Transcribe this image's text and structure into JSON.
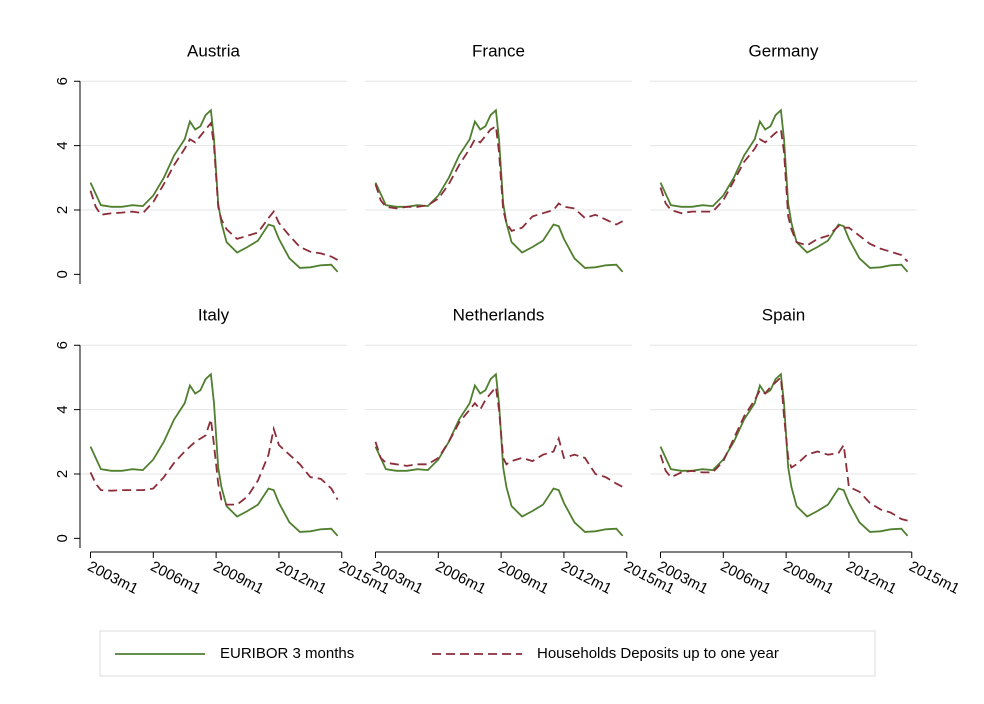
{
  "chart_data": [
    {
      "type": "line",
      "title": "Austria",
      "x": [
        2003,
        2003.25,
        2003.5,
        2004,
        2004.5,
        2005,
        2005.5,
        2006,
        2006.5,
        2007,
        2007.5,
        2007.75,
        2008,
        2008.25,
        2008.5,
        2008.75,
        2008.9,
        2009.1,
        2009.25,
        2009.5,
        2010,
        2010.5,
        2011,
        2011.5,
        2011.75,
        2012,
        2012.5,
        2013,
        2013.5,
        2014,
        2014.5,
        2014.8
      ],
      "series": [
        {
          "name": "EURIBOR 3 months",
          "color": "#4f7f2f",
          "values": [
            2.85,
            2.5,
            2.15,
            2.1,
            2.1,
            2.15,
            2.12,
            2.45,
            3.0,
            3.7,
            4.2,
            4.75,
            4.5,
            4.6,
            4.95,
            5.1,
            4.2,
            2.2,
            1.6,
            1.0,
            0.68,
            0.85,
            1.05,
            1.55,
            1.5,
            1.1,
            0.5,
            0.2,
            0.22,
            0.28,
            0.3,
            0.08
          ]
        },
        {
          "name": "Households Deposits up to one year",
          "color": "#8c2d3a",
          "values": [
            2.6,
            2.1,
            1.85,
            1.9,
            1.92,
            1.95,
            1.9,
            2.25,
            2.8,
            3.4,
            3.9,
            4.2,
            4.1,
            4.3,
            4.5,
            4.7,
            4.0,
            2.1,
            1.7,
            1.4,
            1.1,
            1.2,
            1.3,
            1.75,
            1.95,
            1.6,
            1.2,
            0.85,
            0.7,
            0.65,
            0.55,
            0.45
          ]
        }
      ],
      "xlim": [
        2002.5,
        2015.25
      ],
      "xticks": [
        {
          "value": 2003,
          "label": "2003m1"
        },
        {
          "value": 2006,
          "label": "2006m1"
        },
        {
          "value": 2009,
          "label": "2009m1"
        },
        {
          "value": 2012,
          "label": "2012m1"
        },
        {
          "value": 2015,
          "label": "2015m1"
        }
      ],
      "ylim": [
        -0.3,
        6.35
      ],
      "yticks": [
        0,
        2,
        4,
        6
      ],
      "grid": true
    },
    {
      "type": "line",
      "title": "France",
      "x": [
        2003,
        2003.25,
        2003.5,
        2004,
        2004.5,
        2005,
        2005.5,
        2006,
        2006.5,
        2007,
        2007.5,
        2007.75,
        2008,
        2008.25,
        2008.5,
        2008.75,
        2008.9,
        2009.1,
        2009.25,
        2009.5,
        2010,
        2010.5,
        2011,
        2011.5,
        2011.75,
        2012,
        2012.5,
        2013,
        2013.5,
        2014,
        2014.5,
        2014.8
      ],
      "series": [
        {
          "name": "EURIBOR 3 months",
          "color": "#4f7f2f",
          "values": [
            2.85,
            2.5,
            2.15,
            2.1,
            2.1,
            2.15,
            2.12,
            2.45,
            3.0,
            3.7,
            4.2,
            4.75,
            4.5,
            4.6,
            4.95,
            5.1,
            4.2,
            2.2,
            1.6,
            1.0,
            0.68,
            0.85,
            1.05,
            1.55,
            1.5,
            1.1,
            0.5,
            0.2,
            0.22,
            0.28,
            0.3,
            0.08
          ]
        },
        {
          "name": "Households Deposits up to one year",
          "color": "#8c2d3a",
          "values": [
            2.8,
            2.3,
            2.1,
            2.05,
            2.1,
            2.1,
            2.15,
            2.35,
            2.8,
            3.4,
            3.9,
            4.2,
            4.1,
            4.3,
            4.5,
            4.6,
            3.8,
            2.0,
            1.6,
            1.35,
            1.45,
            1.8,
            1.9,
            2.0,
            2.2,
            2.1,
            2.05,
            1.75,
            1.85,
            1.7,
            1.55,
            1.65
          ]
        }
      ],
      "xlim": [
        2002.5,
        2015.25
      ],
      "xticks": [
        {
          "value": 2003,
          "label": "2003m1"
        },
        {
          "value": 2006,
          "label": "2006m1"
        },
        {
          "value": 2009,
          "label": "2009m1"
        },
        {
          "value": 2012,
          "label": "2012m1"
        },
        {
          "value": 2015,
          "label": "2015m1"
        }
      ],
      "ylim": [
        -0.3,
        6.35
      ],
      "yticks": [
        0,
        2,
        4,
        6
      ],
      "grid": true
    },
    {
      "type": "line",
      "title": "Germany",
      "x": [
        2003,
        2003.25,
        2003.5,
        2004,
        2004.5,
        2005,
        2005.5,
        2006,
        2006.5,
        2007,
        2007.5,
        2007.75,
        2008,
        2008.25,
        2008.5,
        2008.75,
        2008.9,
        2009.1,
        2009.25,
        2009.5,
        2010,
        2010.5,
        2011,
        2011.5,
        2011.75,
        2012,
        2012.5,
        2013,
        2013.5,
        2014,
        2014.5,
        2014.8
      ],
      "series": [
        {
          "name": "EURIBOR 3 months",
          "color": "#4f7f2f",
          "values": [
            2.85,
            2.5,
            2.15,
            2.1,
            2.1,
            2.15,
            2.12,
            2.45,
            3.0,
            3.7,
            4.2,
            4.75,
            4.5,
            4.6,
            4.95,
            5.1,
            4.2,
            2.2,
            1.6,
            1.0,
            0.68,
            0.85,
            1.05,
            1.55,
            1.5,
            1.1,
            0.5,
            0.2,
            0.22,
            0.28,
            0.3,
            0.08
          ]
        },
        {
          "name": "Households Deposits up to one year",
          "color": "#8c2d3a",
          "values": [
            2.7,
            2.2,
            2.0,
            1.9,
            1.95,
            1.95,
            1.95,
            2.3,
            2.9,
            3.5,
            3.9,
            4.2,
            4.1,
            4.25,
            4.4,
            4.5,
            3.8,
            1.8,
            1.4,
            1.0,
            0.9,
            1.1,
            1.2,
            1.5,
            1.45,
            1.45,
            1.2,
            0.95,
            0.8,
            0.7,
            0.6,
            0.4
          ]
        }
      ],
      "xlim": [
        2002.5,
        2015.25
      ],
      "xticks": [
        {
          "value": 2003,
          "label": "2003m1"
        },
        {
          "value": 2006,
          "label": "2006m1"
        },
        {
          "value": 2009,
          "label": "2009m1"
        },
        {
          "value": 2012,
          "label": "2012m1"
        },
        {
          "value": 2015,
          "label": "2015m1"
        }
      ],
      "ylim": [
        -0.3,
        6.35
      ],
      "yticks": [
        0,
        2,
        4,
        6
      ],
      "grid": true
    },
    {
      "type": "line",
      "title": "Italy",
      "x": [
        2003,
        2003.25,
        2003.5,
        2004,
        2004.5,
        2005,
        2005.5,
        2006,
        2006.5,
        2007,
        2007.5,
        2007.75,
        2008,
        2008.25,
        2008.5,
        2008.75,
        2008.9,
        2009.1,
        2009.25,
        2009.5,
        2010,
        2010.5,
        2011,
        2011.5,
        2011.75,
        2012,
        2012.5,
        2013,
        2013.5,
        2014,
        2014.5,
        2014.8
      ],
      "series": [
        {
          "name": "EURIBOR 3 months",
          "color": "#4f7f2f",
          "values": [
            2.85,
            2.5,
            2.15,
            2.1,
            2.1,
            2.15,
            2.12,
            2.45,
            3.0,
            3.7,
            4.2,
            4.75,
            4.5,
            4.6,
            4.95,
            5.1,
            4.2,
            2.2,
            1.6,
            1.0,
            0.68,
            0.85,
            1.05,
            1.55,
            1.5,
            1.1,
            0.5,
            0.2,
            0.22,
            0.28,
            0.3,
            0.08
          ]
        },
        {
          "name": "Households Deposits up to one year",
          "color": "#8c2d3a",
          "values": [
            2.05,
            1.7,
            1.5,
            1.48,
            1.5,
            1.5,
            1.5,
            1.55,
            1.9,
            2.35,
            2.7,
            2.85,
            3.0,
            3.1,
            3.2,
            3.7,
            2.9,
            1.7,
            1.2,
            1.05,
            1.05,
            1.3,
            1.8,
            2.6,
            3.4,
            2.9,
            2.6,
            2.3,
            1.9,
            1.85,
            1.55,
            1.2
          ]
        }
      ],
      "xlim": [
        2002.5,
        2015.25
      ],
      "xticks": [
        {
          "value": 2003,
          "label": "2003m1"
        },
        {
          "value": 2006,
          "label": "2006m1"
        },
        {
          "value": 2009,
          "label": "2009m1"
        },
        {
          "value": 2012,
          "label": "2012m1"
        },
        {
          "value": 2015,
          "label": "2015m1"
        }
      ],
      "ylim": [
        -0.3,
        6.35
      ],
      "yticks": [
        0,
        2,
        4,
        6
      ],
      "grid": true
    },
    {
      "type": "line",
      "title": "Netherlands",
      "x": [
        2003,
        2003.25,
        2003.5,
        2004,
        2004.5,
        2005,
        2005.5,
        2006,
        2006.5,
        2007,
        2007.5,
        2007.75,
        2008,
        2008.25,
        2008.5,
        2008.75,
        2008.9,
        2009.1,
        2009.25,
        2009.5,
        2010,
        2010.5,
        2011,
        2011.5,
        2011.75,
        2012,
        2012.5,
        2013,
        2013.5,
        2014,
        2014.5,
        2014.8
      ],
      "series": [
        {
          "name": "EURIBOR 3 months",
          "color": "#4f7f2f",
          "values": [
            2.85,
            2.5,
            2.15,
            2.1,
            2.1,
            2.15,
            2.12,
            2.45,
            3.0,
            3.7,
            4.2,
            4.75,
            4.5,
            4.6,
            4.95,
            5.1,
            4.2,
            2.2,
            1.6,
            1.0,
            0.68,
            0.85,
            1.05,
            1.55,
            1.5,
            1.1,
            0.5,
            0.2,
            0.22,
            0.28,
            0.3,
            0.08
          ]
        },
        {
          "name": "Households Deposits up to one year",
          "color": "#8c2d3a",
          "values": [
            3.0,
            2.5,
            2.35,
            2.3,
            2.25,
            2.3,
            2.3,
            2.5,
            3.0,
            3.6,
            4.0,
            4.2,
            4.0,
            4.3,
            4.5,
            4.7,
            4.0,
            2.5,
            2.3,
            2.4,
            2.5,
            2.4,
            2.6,
            2.7,
            3.1,
            2.5,
            2.6,
            2.5,
            2.0,
            1.9,
            1.7,
            1.6
          ]
        }
      ],
      "xlim": [
        2002.5,
        2015.25
      ],
      "xticks": [
        {
          "value": 2003,
          "label": "2003m1"
        },
        {
          "value": 2006,
          "label": "2006m1"
        },
        {
          "value": 2009,
          "label": "2009m1"
        },
        {
          "value": 2012,
          "label": "2012m1"
        },
        {
          "value": 2015,
          "label": "2015m1"
        }
      ],
      "ylim": [
        -0.3,
        6.35
      ],
      "yticks": [
        0,
        2,
        4,
        6
      ],
      "grid": true
    },
    {
      "type": "line",
      "title": "Spain",
      "x": [
        2003,
        2003.25,
        2003.5,
        2004,
        2004.5,
        2005,
        2005.5,
        2006,
        2006.5,
        2007,
        2007.5,
        2007.75,
        2008,
        2008.25,
        2008.5,
        2008.75,
        2008.9,
        2009.1,
        2009.25,
        2009.5,
        2010,
        2010.5,
        2011,
        2011.5,
        2011.75,
        2012,
        2012.5,
        2013,
        2013.5,
        2014,
        2014.5,
        2014.8
      ],
      "series": [
        {
          "name": "EURIBOR 3 months",
          "color": "#4f7f2f",
          "values": [
            2.85,
            2.5,
            2.15,
            2.1,
            2.1,
            2.15,
            2.12,
            2.45,
            3.0,
            3.7,
            4.2,
            4.75,
            4.5,
            4.6,
            4.95,
            5.1,
            4.2,
            2.2,
            1.6,
            1.0,
            0.68,
            0.85,
            1.05,
            1.55,
            1.5,
            1.1,
            0.5,
            0.2,
            0.22,
            0.28,
            0.3,
            0.08
          ]
        },
        {
          "name": "Households Deposits up to one year",
          "color": "#8c2d3a",
          "values": [
            2.6,
            2.1,
            1.9,
            2.05,
            2.1,
            2.05,
            2.05,
            2.4,
            3.1,
            3.8,
            4.3,
            4.6,
            4.5,
            4.7,
            4.85,
            5.0,
            3.8,
            2.5,
            2.2,
            2.3,
            2.6,
            2.7,
            2.6,
            2.65,
            2.9,
            1.6,
            1.45,
            1.1,
            0.9,
            0.8,
            0.6,
            0.55
          ]
        }
      ],
      "xlim": [
        2002.5,
        2015.25
      ],
      "xticks": [
        {
          "value": 2003,
          "label": "2003m1"
        },
        {
          "value": 2006,
          "label": "2006m1"
        },
        {
          "value": 2009,
          "label": "2009m1"
        },
        {
          "value": 2012,
          "label": "2012m1"
        },
        {
          "value": 2015,
          "label": "2015m1"
        }
      ],
      "ylim": [
        -0.3,
        6.35
      ],
      "yticks": [
        0,
        2,
        4,
        6
      ],
      "grid": true
    }
  ]
}
